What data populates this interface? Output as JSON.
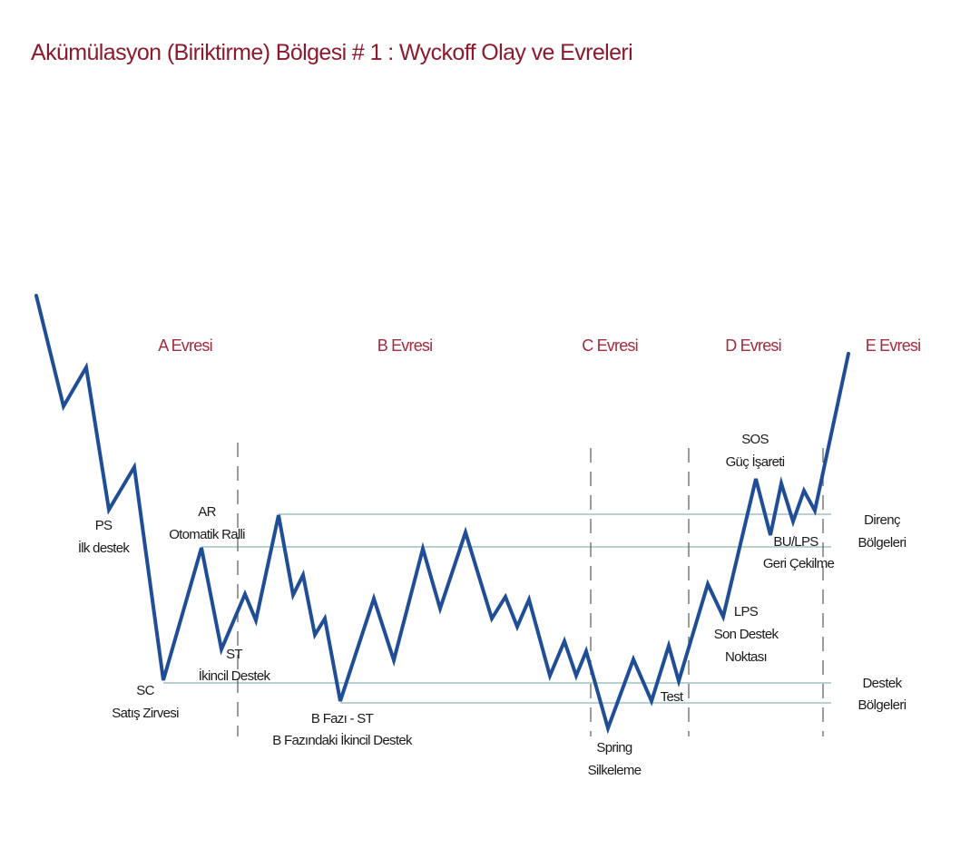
{
  "title": "Akümülasyon (Biriktirme) Bölgesi # 1 : Wyckoff  Olay ve Evreleri",
  "phases": [
    "A Evresi",
    "B Evresi",
    "C Evresi",
    "D Evresi",
    "E Evresi"
  ],
  "events": {
    "ps": [
      "PS",
      "İlk destek"
    ],
    "sc": [
      "SC",
      "Satış Zirvesi"
    ],
    "ar": [
      "AR",
      "Otomatik Ralli"
    ],
    "st": [
      "ST",
      "İkincil Destek"
    ],
    "bst": [
      "B Fazı - ST",
      "B Fazındaki İkincil Destek"
    ],
    "spring": [
      "Spring",
      "Silkeleme"
    ],
    "test": [
      "Test"
    ],
    "lps": [
      "LPS",
      "Son Destek",
      "Noktası"
    ],
    "sos": [
      "SOS",
      "Güç İşareti"
    ],
    "bu_lps": [
      "BU/LPS",
      "Geri Çekilme"
    ]
  },
  "zones": {
    "resistance": [
      "Direnç",
      "Bölgeleri"
    ],
    "support": [
      "Destek",
      "Bölgeleri"
    ]
  },
  "colors": {
    "title": "#8b1a2c",
    "phase_label": "#a52a3c",
    "price_line": "#1f4e96",
    "zone_line": "#8fb3b8",
    "divider": "#666666"
  }
}
